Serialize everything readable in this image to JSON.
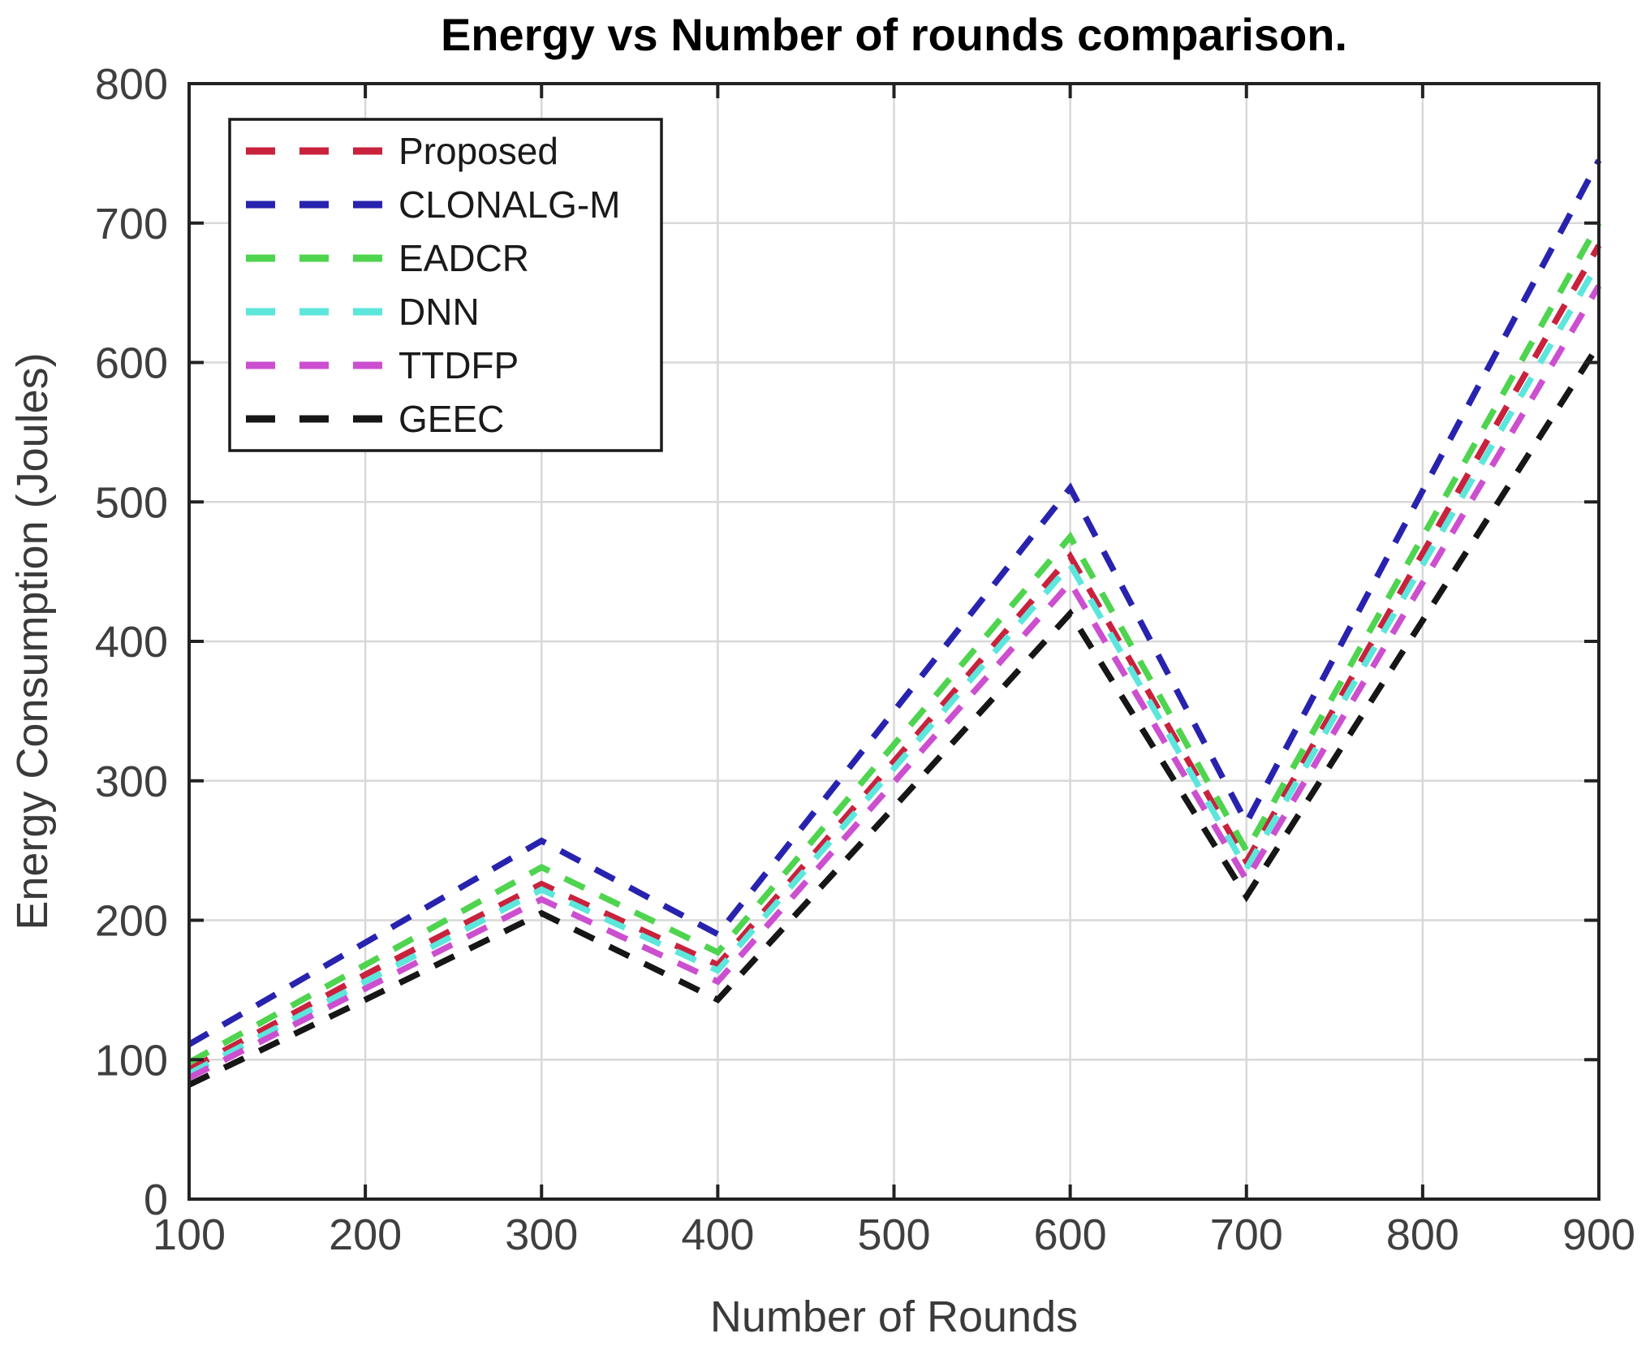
{
  "figure": {
    "background": "#ffffff",
    "grid_color": "#d8d8d8",
    "axis_color": "#222222",
    "tick_label_color": "#3f3f3f",
    "legend_border_color": "#1a1a1a",
    "legend_background": "#ffffff"
  },
  "chart_data": {
    "type": "line",
    "title": "Energy vs Number of rounds comparison.",
    "xlabel": "Number of Rounds",
    "ylabel": "Energy Consumption (Joules)",
    "x": [
      100,
      200,
      300,
      400,
      500,
      600,
      700,
      800,
      900
    ],
    "xlim": [
      100,
      900
    ],
    "ylim": [
      0,
      800
    ],
    "x_ticks": [
      100,
      200,
      300,
      400,
      500,
      600,
      700,
      800,
      900
    ],
    "y_ticks": [
      0,
      100,
      200,
      300,
      400,
      500,
      600,
      700,
      800
    ],
    "grid": true,
    "line_style": "dashed",
    "legend_position": "top-left",
    "legend_order": [
      "Proposed",
      "CLONALG-M",
      "EADCR",
      "DNN",
      "TTDFP",
      "GEEC"
    ],
    "series": [
      {
        "name": "Proposed",
        "color": "#c8223c",
        "values": [
          93,
          161,
          226,
          168,
          314,
          461,
          242,
          463,
          684
        ]
      },
      {
        "name": "CLONALG-M",
        "color": "#2823ae",
        "values": [
          111,
          184,
          257,
          190,
          350,
          510,
          270,
          508,
          745
        ]
      },
      {
        "name": "EADCR",
        "color": "#4ed44e",
        "values": [
          98,
          168,
          238,
          177,
          326,
          475,
          250,
          475,
          700
        ]
      },
      {
        "name": "DNN",
        "color": "#5ce6dc",
        "values": [
          90,
          156,
          222,
          164,
          309,
          455,
          237,
          455,
          672
        ]
      },
      {
        "name": "TTDFP",
        "color": "#cc4fd0",
        "values": [
          87,
          151,
          215,
          156,
          299,
          442,
          229,
          442,
          655
        ]
      },
      {
        "name": "GEEC",
        "color": "#161616",
        "values": [
          82,
          143,
          205,
          143,
          281,
          420,
          217,
          415,
          613
        ]
      }
    ]
  }
}
